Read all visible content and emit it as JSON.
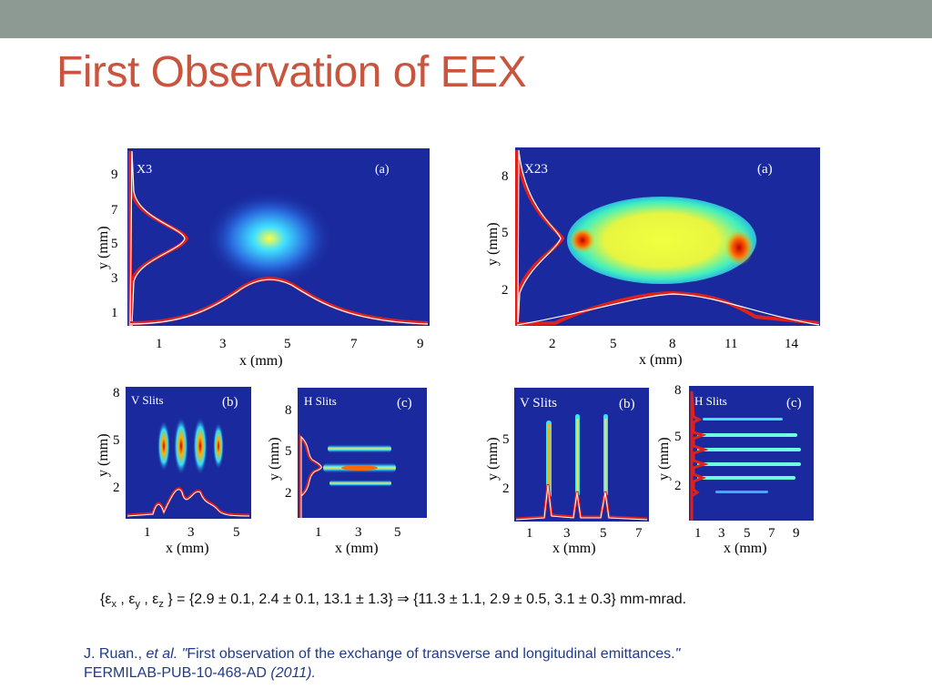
{
  "slide": {
    "title": "First Observation of EEX"
  },
  "figures": {
    "x3": {
      "label": "X3",
      "panel": "(a)",
      "ylabel": "y (mm)",
      "xlabel": "x (mm)",
      "yticks": [
        "9",
        "7",
        "5",
        "3",
        "1"
      ],
      "xticks": [
        "1",
        "3",
        "5",
        "7",
        "9"
      ]
    },
    "x23": {
      "label": "X23",
      "panel": "(a)",
      "ylabel": "y (mm)",
      "xlabel": "x (mm)",
      "yticks": [
        "8",
        "5",
        "2"
      ],
      "xticks": [
        "2",
        "5",
        "8",
        "11",
        "14"
      ]
    },
    "b_left": {
      "label": "V Slits",
      "panel": "(b)",
      "ylabel": "y (mm)",
      "xlabel": "x (mm)",
      "yticks": [
        "8",
        "5",
        "2"
      ],
      "xticks": [
        "1",
        "3",
        "5"
      ]
    },
    "c_left": {
      "label": "H Slits",
      "panel": "(c)",
      "ylabel": "y (mm)",
      "xlabel": "x (mm)",
      "yticks": [
        "8",
        "5",
        "2"
      ],
      "xticks": [
        "1",
        "3",
        "5"
      ]
    },
    "b_right": {
      "label": "V Slits",
      "panel": "(b)",
      "ylabel": "y (mm)",
      "xlabel": "x (mm)",
      "yticks": [
        "5",
        "2"
      ],
      "xticks": [
        "1",
        "3",
        "5",
        "7"
      ]
    },
    "c_right": {
      "label": "H Slits",
      "panel": "(c)",
      "ylabel": "y (mm)",
      "xlabel": "x (mm)",
      "yticks": [
        "8",
        "5",
        "2"
      ],
      "xticks": [
        "1",
        "3",
        "5",
        "7",
        "9"
      ]
    }
  },
  "equation": {
    "open": "{ε",
    "sx": "x",
    "c1": " , ε",
    "sy": "y",
    "c2": " , ε",
    "sz": "z",
    "rest": " } = {2.9 ± 0.1, 2.4 ± 0.1, 13.1 ± 1.3} ⇒ {11.3 ± 1.1, 2.9 ± 0.5, 3.1 ± 0.3} mm-mrad."
  },
  "reference": {
    "authors": "J. Ruan.,",
    "etal": "et al.",
    "quote_open": "\"",
    "title": "First observation of the exchange of transverse and longitudinal emittances.",
    "quote_close": "\"",
    "report": "FERMILAB-PUB-10-468-AD",
    "year": "(2011)."
  },
  "colors": {
    "topbar": "#8d9a94",
    "title": "#c8553d",
    "plot_bg": "#1a2a9e",
    "profile_line": "#e0201a",
    "reference_text": "#1f3b8a"
  }
}
